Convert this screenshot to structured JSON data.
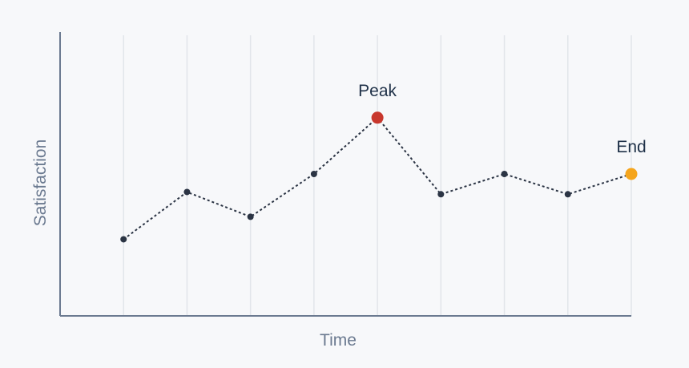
{
  "chart_data": {
    "type": "line",
    "title": "",
    "xlabel": "Time",
    "ylabel": "Satisfaction",
    "x": [
      1,
      2,
      3,
      4,
      5,
      6,
      7,
      8,
      9
    ],
    "series": [
      {
        "values": [
          3.2,
          5.3,
          4.2,
          6.1,
          8.6,
          5.2,
          6.1,
          5.2,
          6.1
        ]
      }
    ],
    "xlim": [
      0,
      9
    ],
    "ylim": [
      -0.2,
      12.4
    ],
    "grid": {
      "vertical": true,
      "horizontal": false
    },
    "line_style": "dotted",
    "annotations": [
      {
        "text": "Peak",
        "index": 4,
        "color": "#c8372d"
      },
      {
        "text": "End",
        "index": 8,
        "color": "#f5a51c"
      }
    ],
    "colors": {
      "line": "#2b3444",
      "point": "#2b3444",
      "axis": "#6b7a90",
      "grid": "#e2e5ea"
    }
  }
}
